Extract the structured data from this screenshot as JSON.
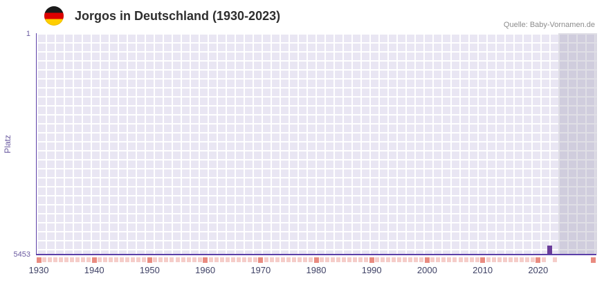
{
  "header": {
    "flag_icon": "german-flag-icon"
  },
  "chart_data": {
    "type": "bar",
    "title": "Jorgos in Deutschland (1930-2023)",
    "source": "Quelle: Baby-Vornamen.de",
    "ylabel": "Platz",
    "y_axis": {
      "min": 1,
      "max": 5453,
      "min_label": "1",
      "max_label": "5453",
      "inverted": true
    },
    "x_axis": {
      "range": [
        1929.5,
        2030.5
      ],
      "labels": [
        "1930",
        "1940",
        "1950",
        "1960",
        "1970",
        "1980",
        "1990",
        "2000",
        "2010",
        "2020"
      ],
      "tick_years": [
        1930,
        1940,
        1950,
        1960,
        1970,
        1980,
        1990,
        2000,
        2010,
        2020,
        2030
      ]
    },
    "series": [
      {
        "name": "Platz",
        "points": [
          {
            "year": 2022,
            "platz": 5250
          }
        ]
      }
    ],
    "unranked_years": {
      "from": 1930,
      "to": 2023,
      "except": [
        2022
      ]
    },
    "future_band": {
      "from": 2023.5,
      "to": 2030.5
    },
    "grid": true,
    "legend": "none",
    "colors": {
      "accent": "#5b3fa8",
      "bar": "#6a3d9a",
      "plot_bg": "#e9e6f3",
      "grid": "#ffffff",
      "band": "#9b99ad",
      "tick_light": "#f5cdc9",
      "tick_dark": "#e98b80",
      "axis_label": "#6a5aa0",
      "x_label": "#3f4266"
    }
  }
}
